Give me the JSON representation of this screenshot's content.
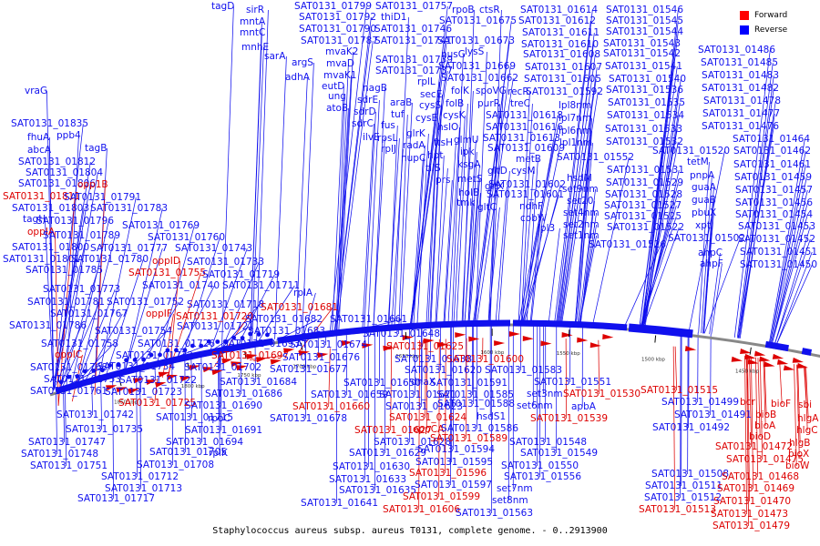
{
  "caption": "Staphylococcus aureus subsp. aureus T0131, complete genome. - 0..2913900",
  "legend": {
    "forward_label": "Forward",
    "reverse_label": "Reverse",
    "forward_color": "#ff0000",
    "reverse_color": "#0000ff"
  },
  "colors": {
    "forward": "#dd0000",
    "reverse": "#1010ee",
    "backbone": "#888888"
  },
  "ticks": [
    "1850 kbp",
    "1800 kbp",
    "1750 kbp",
    "1700 kbp",
    "1650 kbp",
    "1600 kbp",
    "1550 kbp",
    "1500 kbp",
    "1450 kbp"
  ],
  "labels": [
    [
      "tagD",
      "r",
      232,
      10
    ],
    [
      "sirR",
      "r",
      270,
      14
    ],
    [
      "mntA",
      "r",
      263,
      27
    ],
    [
      "mntC",
      "r",
      263,
      39
    ],
    [
      "mnhE",
      "r",
      265,
      55
    ],
    [
      "sarA",
      "r",
      290,
      65
    ],
    [
      "argS",
      "r",
      320,
      72
    ],
    [
      "adhA",
      "r",
      313,
      88
    ],
    [
      "vraG",
      "r",
      27,
      103
    ],
    [
      "SAT0131_01799",
      "r",
      323,
      10
    ],
    [
      "SAT0131_01792",
      "r",
      328,
      22
    ],
    [
      "SAT0131_01790",
      "r",
      328,
      35
    ],
    [
      "SAT0131_01787",
      "r",
      330,
      48
    ],
    [
      "mvaK2",
      "r",
      357,
      60
    ],
    [
      "mvaD",
      "r",
      358,
      73
    ],
    [
      "mvaK1",
      "r",
      355,
      86
    ],
    [
      "eutD",
      "r",
      353,
      98
    ],
    [
      "ung",
      "r",
      360,
      109
    ],
    [
      "atoB",
      "r",
      358,
      122
    ],
    [
      "sdrE",
      "r",
      392,
      113
    ],
    [
      "sdrD",
      "r",
      388,
      126
    ],
    [
      "sdrC",
      "r",
      386,
      139
    ],
    [
      "ilvE",
      "r",
      398,
      154
    ],
    [
      "nagB",
      "r",
      398,
      100
    ],
    [
      "SAT0131_01757",
      "r",
      412,
      10
    ],
    [
      "thiD1",
      "r",
      418,
      22
    ],
    [
      "SAT0131_01746",
      "r",
      411,
      35
    ],
    [
      "SAT0131_01741",
      "r",
      411,
      48
    ],
    [
      "SAT0131_01739",
      "r",
      412,
      69
    ],
    [
      "SAT0131_01737",
      "r",
      412,
      81
    ],
    [
      "rplL",
      "r",
      458,
      93
    ],
    [
      "araB",
      "r",
      428,
      116
    ],
    [
      "tuf",
      "r",
      429,
      129
    ],
    [
      "fus",
      "r",
      418,
      141
    ],
    [
      "rpsL",
      "r",
      414,
      155
    ],
    [
      "rplJ",
      "r",
      418,
      167
    ],
    [
      "radA",
      "r",
      442,
      163
    ],
    [
      "nupC",
      "r",
      440,
      177
    ],
    [
      "secE",
      "r",
      461,
      107
    ],
    [
      "cysS",
      "r",
      460,
      119
    ],
    [
      "cysE",
      "r",
      456,
      133
    ],
    [
      "glrK",
      "r",
      446,
      150
    ],
    [
      "rpoB",
      "r",
      496,
      14
    ],
    [
      "ctsR",
      "r",
      526,
      14
    ],
    [
      "nusG",
      "r",
      484,
      63
    ],
    [
      "lysS",
      "r",
      510,
      60
    ],
    [
      "SAT0131_01675",
      "r",
      482,
      26
    ],
    [
      "SAT0131_01673",
      "r",
      480,
      48
    ],
    [
      "SAT0131_01669",
      "r",
      481,
      76
    ],
    [
      "SAT0131_01662",
      "r",
      484,
      89
    ],
    [
      "folK",
      "r",
      495,
      103
    ],
    [
      "folB",
      "r",
      489,
      117
    ],
    [
      "cysK",
      "r",
      486,
      130
    ],
    [
      "hslO",
      "r",
      480,
      143
    ],
    [
      "ftsH",
      "r",
      476,
      160
    ],
    [
      "hpt",
      "r",
      469,
      174
    ],
    [
      "tilS",
      "r",
      467,
      188
    ],
    [
      "prs",
      "r",
      478,
      201
    ],
    [
      "spoVG",
      "r",
      522,
      103
    ],
    [
      "purR",
      "r",
      524,
      117
    ],
    [
      "glmU",
      "r",
      498,
      157
    ],
    [
      "ipk",
      "r",
      505,
      170
    ],
    [
      "ksgA",
      "r",
      502,
      184
    ],
    [
      "metS",
      "r",
      502,
      200
    ],
    [
      "holB",
      "r",
      503,
      215
    ],
    [
      "tmk",
      "r",
      501,
      226
    ],
    [
      "gltC",
      "r",
      524,
      231
    ],
    [
      "gltD",
      "r",
      535,
      191
    ],
    [
      "gltX",
      "r",
      532,
      208
    ],
    [
      "SAT0131_01614",
      "r",
      571,
      14
    ],
    [
      "SAT0131_01612",
      "r",
      569,
      26
    ],
    [
      "SAT0131_01611",
      "r",
      573,
      39
    ],
    [
      "SAT0131_01610",
      "r",
      572,
      52
    ],
    [
      "SAT0131_01608",
      "r",
      574,
      63
    ],
    [
      "SAT0131_01607",
      "r",
      576,
      77
    ],
    [
      "SAT0131_01605",
      "r",
      575,
      90
    ],
    [
      "recR",
      "r",
      557,
      104
    ],
    [
      "SAT0131_01592",
      "r",
      577,
      104
    ],
    [
      "treC",
      "r",
      560,
      117
    ],
    [
      "SAT0131_01618",
      "r",
      533,
      130
    ],
    [
      "SAT0131_01616",
      "r",
      533,
      143
    ],
    [
      "SAT0131_01613",
      "r",
      530,
      155
    ],
    [
      "SAT0131_01609",
      "r",
      535,
      166
    ],
    [
      "cysM",
      "r",
      561,
      191
    ],
    [
      "metB",
      "r",
      566,
      178
    ],
    [
      "SAT0131_01602",
      "r",
      536,
      206
    ],
    [
      "SAT0131_01601",
      "r",
      534,
      217
    ],
    [
      "ndhF",
      "r",
      570,
      230
    ],
    [
      "cobW",
      "r",
      571,
      243
    ],
    [
      "lpl3",
      "r",
      590,
      254
    ],
    [
      "SAT0131_01546",
      "r",
      665,
      14
    ],
    [
      "SAT0131_01545",
      "r",
      665,
      26
    ],
    [
      "SAT0131_01544",
      "r",
      665,
      38
    ],
    [
      "SAT0131_01543",
      "r",
      662,
      51
    ],
    [
      "SAT0131_01542",
      "r",
      662,
      62
    ],
    [
      "SAT0131_01541",
      "r",
      664,
      76
    ],
    [
      "SAT0131_01540",
      "r",
      668,
      90
    ],
    [
      "SAT0131_01536",
      "r",
      665,
      102
    ],
    [
      "SAT0131_01535",
      "r",
      667,
      116
    ],
    [
      "SAT0131_01534",
      "r",
      666,
      130
    ],
    [
      "SAT0131_01533",
      "r",
      664,
      145
    ],
    [
      "SAT0131_01532",
      "r",
      665,
      159
    ],
    [
      "lpl8nm",
      "r",
      613,
      119
    ],
    [
      "lpl7nm",
      "r",
      613,
      133
    ],
    [
      "lpl6nm",
      "r",
      613,
      147
    ],
    [
      "lpl1nm",
      "r",
      614,
      160
    ],
    [
      "SAT0131_01552",
      "r",
      611,
      176
    ],
    [
      "hsdM",
      "r",
      622,
      199
    ],
    [
      "set9nm",
      "r",
      617,
      211
    ],
    [
      "set20",
      "r",
      622,
      224
    ],
    [
      "set4nm",
      "r",
      618,
      237
    ],
    [
      "set2nm",
      "r",
      618,
      250
    ],
    [
      "set1nm",
      "r",
      618,
      262
    ],
    [
      "SAT0131_01531",
      "r",
      666,
      190
    ],
    [
      "SAT0131_01529",
      "r",
      665,
      204
    ],
    [
      "SAT0131_01528",
      "r",
      664,
      217
    ],
    [
      "SAT0131_01527",
      "r",
      663,
      229
    ],
    [
      "SAT0131_01525",
      "r",
      663,
      241
    ],
    [
      "SAT0131_01522",
      "r",
      666,
      253
    ],
    [
      "SAT0131_01526",
      "r",
      646,
      272
    ],
    [
      "SAT0131_01520",
      "r",
      716,
      169
    ],
    [
      "SAT0131_01502",
      "r",
      733,
      265
    ],
    [
      "SAT0131_01486",
      "r",
      766,
      58
    ],
    [
      "SAT0131_01485",
      "r",
      769,
      72
    ],
    [
      "SAT0131_01483",
      "r",
      770,
      86
    ],
    [
      "SAT0131_01482",
      "r",
      770,
      100
    ],
    [
      "SAT0131_01478",
      "r",
      772,
      114
    ],
    [
      "SAT0131_01477",
      "r",
      771,
      128
    ],
    [
      "SAT0131_01476",
      "r",
      770,
      142
    ],
    [
      "SAT0131_01464",
      "r",
      804,
      156
    ],
    [
      "SAT0131_01462",
      "r",
      805,
      169
    ],
    [
      "SAT0131_01461",
      "r",
      805,
      184
    ],
    [
      "SAT0131_01459",
      "r",
      806,
      198
    ],
    [
      "SAT0131_01457",
      "r",
      807,
      212
    ],
    [
      "SAT0131_01456",
      "r",
      807,
      226
    ],
    [
      "SAT0131_01454",
      "r",
      807,
      239
    ],
    [
      "SAT0131_01453",
      "r",
      810,
      252
    ],
    [
      "SAT0131_01452",
      "r",
      810,
      266
    ],
    [
      "SAT0131_01451",
      "r",
      812,
      280
    ],
    [
      "SAT0131_01450",
      "r",
      812,
      294
    ],
    [
      "tetM",
      "r",
      754,
      181
    ],
    [
      "pnpA",
      "r",
      757,
      196
    ],
    [
      "guaA",
      "r",
      759,
      209
    ],
    [
      "guaB",
      "r",
      759,
      223
    ],
    [
      "pbuX",
      "r",
      759,
      237
    ],
    [
      "xpt",
      "r",
      763,
      251
    ],
    [
      "ahpC",
      "r",
      766,
      281
    ],
    [
      "ahpF",
      "r",
      768,
      293
    ],
    [
      "SAT0131_01835",
      "r",
      12,
      139
    ],
    [
      "fhuA",
      "r",
      30,
      154
    ],
    [
      "ppb4",
      "r",
      62,
      152
    ],
    [
      "abcA",
      "r",
      30,
      168
    ],
    [
      "tagB",
      "r",
      93,
      166
    ],
    [
      "SAT0131_01812",
      "r",
      20,
      181
    ],
    [
      "SAT0131_01804",
      "r",
      28,
      193
    ],
    [
      "SAT0131_01806",
      "r",
      20,
      205
    ],
    [
      "opp1B",
      "f",
      85,
      206
    ],
    [
      "SAT0131_01811",
      "f",
      3,
      219
    ],
    [
      "SAT0131_01791",
      "r",
      70,
      220
    ],
    [
      "SAT0131_01803",
      "r",
      13,
      232
    ],
    [
      "SAT0131_01783",
      "r",
      99,
      232
    ],
    [
      "tagH",
      "r",
      25,
      244
    ],
    [
      "SAT0131_01796",
      "r",
      40,
      246
    ],
    [
      "oppIA",
      "f",
      30,
      258
    ],
    [
      "SAT0131_01789",
      "r",
      47,
      262
    ],
    [
      "SAT0131_01769",
      "r",
      134,
      251
    ],
    [
      "SAT0131_01760",
      "r",
      162,
      264
    ],
    [
      "SAT0131_01800",
      "r",
      13,
      275
    ],
    [
      "SAT0131_01777",
      "r",
      99,
      276
    ],
    [
      "SAT0131_01743",
      "r",
      192,
      276
    ],
    [
      "SAT0131_01801",
      "r",
      3,
      288
    ],
    [
      "SAT0131_01780",
      "r",
      78,
      288
    ],
    [
      "oppID",
      "f",
      167,
      290
    ],
    [
      "SAT0131_01733",
      "r",
      205,
      291
    ],
    [
      "SAT0131_01785",
      "r",
      28,
      300
    ],
    [
      "SAT0131_01755",
      "f",
      141,
      303
    ],
    [
      "SAT0131_01719",
      "r",
      222,
      305
    ],
    [
      "SAT0131_01773",
      "r",
      47,
      321
    ],
    [
      "SAT0131_01740",
      "r",
      156,
      317
    ],
    [
      "SAT0131_01711",
      "r",
      244,
      317
    ],
    [
      "SAT0131_01781",
      "r",
      30,
      335
    ],
    [
      "SAT0131_01752",
      "r",
      117,
      335
    ],
    [
      "SAT0131_01718",
      "r",
      205,
      338
    ],
    [
      "rplA",
      "r",
      322,
      325
    ],
    [
      "SAT0131_01681",
      "f",
      286,
      341
    ],
    [
      "SAT0131_01767",
      "r",
      55,
      348
    ],
    [
      "oppIF",
      "f",
      160,
      348
    ],
    [
      "SAT0131_01720",
      "f",
      193,
      351
    ],
    [
      "SAT0131_01682",
      "r",
      269,
      354
    ],
    [
      "SAT0131_01661",
      "r",
      362,
      354
    ],
    [
      "SAT0131_01786",
      "r",
      10,
      361
    ],
    [
      "SAT0131_01754",
      "r",
      104,
      367
    ],
    [
      "SAT0131_01721",
      "r",
      194,
      362
    ],
    [
      "SAT0131_01683",
      "r",
      272,
      367
    ],
    [
      "SAT0131_01648",
      "r",
      398,
      370
    ],
    [
      "SAT0131_01758",
      "r",
      45,
      381
    ],
    [
      "SAT0131_01726",
      "r",
      151,
      381
    ],
    [
      "SAT0131_01693",
      "r",
      244,
      381
    ],
    [
      "SAT0131_01674",
      "r",
      318,
      382
    ],
    [
      "SAT0131_01625",
      "f",
      424,
      384
    ],
    [
      "oppIC",
      "f",
      60,
      393
    ],
    [
      "SAT0131_01732",
      "r",
      127,
      394
    ],
    [
      "SAT0131_01697",
      "f",
      232,
      394
    ],
    [
      "SAT0131_01676",
      "r",
      310,
      396
    ],
    [
      "SAT0131_01638",
      "r",
      433,
      398
    ],
    [
      "SAT0131_01600",
      "f",
      490,
      398
    ],
    [
      "SAT0131_01768",
      "r",
      33,
      407
    ],
    [
      "SAT0131_01734",
      "r",
      107,
      406
    ],
    [
      "SAT0131_01702",
      "r",
      202,
      407
    ],
    [
      "SAT0131_01677",
      "r",
      296,
      409
    ],
    [
      "SAT0131_01620",
      "r",
      444,
      410
    ],
    [
      "SAT0131_01583",
      "r",
      532,
      410
    ],
    [
      "SAT0131_01753",
      "r",
      48,
      420
    ],
    [
      "SAT0131_01722",
      "r",
      131,
      421
    ],
    [
      "SAT0131_01684",
      "r",
      241,
      423
    ],
    [
      "SAT0131_01650",
      "r",
      377,
      424
    ],
    [
      "dnaX",
      "r",
      451,
      423
    ],
    [
      "SAT0131_01591",
      "r",
      472,
      424
    ],
    [
      "SAT0131_01551",
      "r",
      586,
      423
    ],
    [
      "SAT0131_01761",
      "r",
      33,
      433
    ],
    [
      "SAT0131_01723",
      "r",
      115,
      434
    ],
    [
      "SAT0131_01686",
      "r",
      225,
      436
    ],
    [
      "SAT0131_01659",
      "r",
      341,
      437
    ],
    [
      "SAT0131_01621",
      "r",
      416,
      437
    ],
    [
      "SAT0131_01585",
      "r",
      479,
      437
    ],
    [
      "set3nm",
      "r",
      578,
      436
    ],
    [
      "SAT0131_01530",
      "f",
      618,
      436
    ],
    [
      "SAT0131_01515",
      "f",
      703,
      432
    ],
    [
      "SAT0131_01725",
      "f",
      130,
      446
    ],
    [
      "SAT0131_01690",
      "r",
      203,
      449
    ],
    [
      "SAT0131_01660",
      "f",
      321,
      450
    ],
    [
      "SAT0131_01623",
      "r",
      423,
      450
    ],
    [
      "SAT0131_01588",
      "r",
      480,
      447
    ],
    [
      "apbA",
      "r",
      627,
      450
    ],
    [
      "SAT0131_01499",
      "r",
      726,
      445
    ],
    [
      "SAT0131_01742",
      "r",
      62,
      459
    ],
    [
      "SAT0131_01715",
      "r",
      171,
      462
    ],
    [
      "rpoC",
      "r",
      228,
      463
    ],
    [
      "SAT0131_01678",
      "r",
      296,
      463
    ],
    [
      "SAT0131_01624",
      "f",
      427,
      462
    ],
    [
      "hsdS1",
      "r",
      523,
      461
    ],
    [
      "set6nm",
      "r",
      567,
      449
    ],
    [
      "SAT0131_01539",
      "f",
      582,
      463
    ],
    [
      "SAT0131_01491",
      "r",
      740,
      459
    ],
    [
      "SAT0131_01735",
      "r",
      72,
      475
    ],
    [
      "SAT0131_01691",
      "r",
      203,
      476
    ],
    [
      "SAT0131_01627",
      "f",
      389,
      476
    ],
    [
      "oppCA",
      "f",
      453,
      475
    ],
    [
      "SAT0131_01586",
      "r",
      484,
      474
    ],
    [
      "SAT0131_01492",
      "r",
      716,
      473
    ],
    [
      "bcr",
      "f",
      812,
      445
    ],
    [
      "bioF",
      "f",
      846,
      447
    ],
    [
      "sbi",
      "f",
      876,
      448
    ],
    [
      "bioB",
      "f",
      829,
      459
    ],
    [
      "hlgA",
      "f",
      875,
      463
    ],
    [
      "bioA",
      "f",
      828,
      471
    ],
    [
      "hlgC",
      "f",
      874,
      476
    ],
    [
      "SAT0131_01747",
      "r",
      31,
      489
    ],
    [
      "SAT0131_01694",
      "r",
      182,
      489
    ],
    [
      "SAT0131_01628",
      "r",
      410,
      489
    ],
    [
      "SAT0131_01589",
      "f",
      472,
      485
    ],
    [
      "SAT0131_01548",
      "r",
      559,
      489
    ],
    [
      "bioD",
      "f",
      822,
      483
    ],
    [
      "hlgB",
      "f",
      866,
      490
    ],
    [
      "SAT0131_01748",
      "r",
      23,
      502
    ],
    [
      "SAT0131_01705",
      "r",
      164,
      500
    ],
    [
      "rplK",
      "r",
      229,
      501
    ],
    [
      "SAT0131_01629",
      "r",
      383,
      501
    ],
    [
      "SAT0131_01594",
      "r",
      458,
      497
    ],
    [
      "SAT0131_01549",
      "r",
      571,
      501
    ],
    [
      "SAT0131_01472",
      "f",
      785,
      494
    ],
    [
      "bioX",
      "f",
      865,
      502
    ],
    [
      "SAT0131_01751",
      "r",
      33,
      515
    ],
    [
      "SAT0131_01708",
      "r",
      150,
      514
    ],
    [
      "SAT0131_01630",
      "r",
      365,
      516
    ],
    [
      "SAT0131_01595",
      "r",
      456,
      511
    ],
    [
      "SAT0131_01550",
      "r",
      550,
      515
    ],
    [
      "SAT0131_01475",
      "f",
      797,
      508
    ],
    [
      "bioW",
      "f",
      862,
      515
    ],
    [
      "SAT0131_01712",
      "r",
      111,
      527
    ],
    [
      "SAT0131_01633",
      "r",
      361,
      530
    ],
    [
      "SAT0131_01596",
      "f",
      449,
      523
    ],
    [
      "SAT0131_01556",
      "r",
      553,
      527
    ],
    [
      "SAT0131_01508",
      "r",
      715,
      524
    ],
    [
      "SAT0131_01468",
      "f",
      792,
      527
    ],
    [
      "SAT0131_01713",
      "r",
      115,
      540
    ],
    [
      "SAT0131_01635",
      "r",
      372,
      542
    ],
    [
      "SAT0131_01597",
      "r",
      455,
      536
    ],
    [
      "set7nm",
      "r",
      545,
      540
    ],
    [
      "SAT0131_01511",
      "r",
      708,
      537
    ],
    [
      "SAT0131_01469",
      "f",
      787,
      540
    ],
    [
      "SAT0131_01717",
      "r",
      85,
      551
    ],
    [
      "SAT0131_01641",
      "r",
      330,
      556
    ],
    [
      "SAT0131_01599",
      "f",
      442,
      549
    ],
    [
      "set8nm",
      "r",
      540,
      553
    ],
    [
      "SAT0131_01512",
      "r",
      707,
      550
    ],
    [
      "SAT0131_01470",
      "f",
      783,
      554
    ],
    [
      "SAT0131_01606",
      "f",
      420,
      563
    ],
    [
      "SAT0131_01563",
      "r",
      500,
      567
    ],
    [
      "SAT0131_01513",
      "f",
      701,
      563
    ],
    [
      "SAT0131_01473",
      "f",
      780,
      568
    ],
    [
      "SAT0131_01479",
      "f",
      782,
      581
    ]
  ]
}
